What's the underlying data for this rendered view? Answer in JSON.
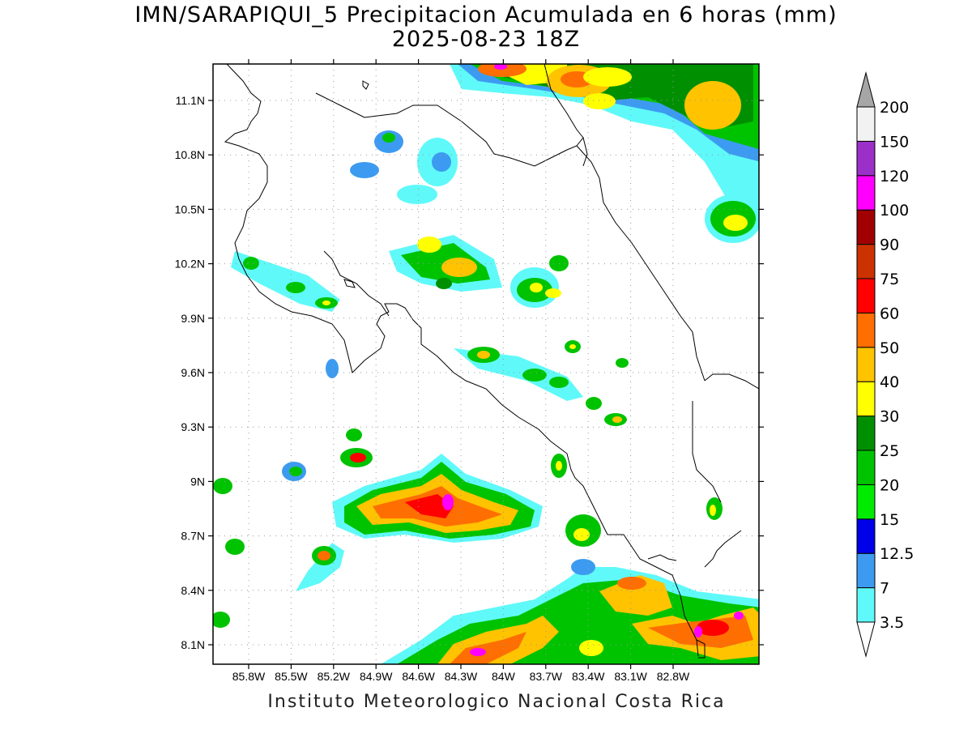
{
  "map": {
    "title_line1": "IMN/SARAPIQUI_5 Precipitacion Acumulada en 6 horas (mm)",
    "title_line2": "2025-08-23 18Z",
    "credit": "Instituto Meteorologico Nacional Costa Rica",
    "lat_ticks": [
      "11.1N",
      "10.8N",
      "10.5N",
      "10.2N",
      "9.9N",
      "9.6N",
      "9.3N",
      "9N",
      "8.7N",
      "8.4N",
      "8.1N"
    ],
    "lon_ticks": [
      "85.8W",
      "85.5W",
      "85.2W",
      "84.9W",
      "84.6W",
      "84.3W",
      "84W",
      "83.7W",
      "83.4W",
      "83.1W",
      "82.8W"
    ]
  },
  "colorbar": {
    "labels": [
      "3.5",
      "7",
      "12.5",
      "15",
      "20",
      "25",
      "30",
      "40",
      "50",
      "60",
      "75",
      "90",
      "100",
      "120",
      "150",
      "200"
    ],
    "colors": [
      "#5ff9f9",
      "#3c9bf0",
      "#0000e8",
      "#00eb00",
      "#00c300",
      "#008f00",
      "#ffff00",
      "#ffc300",
      "#ff6e00",
      "#ff0000",
      "#cb3200",
      "#a00000",
      "#ff00ff",
      "#9b30c8",
      "#f2f2f2",
      "#a6a6a6"
    ]
  }
}
